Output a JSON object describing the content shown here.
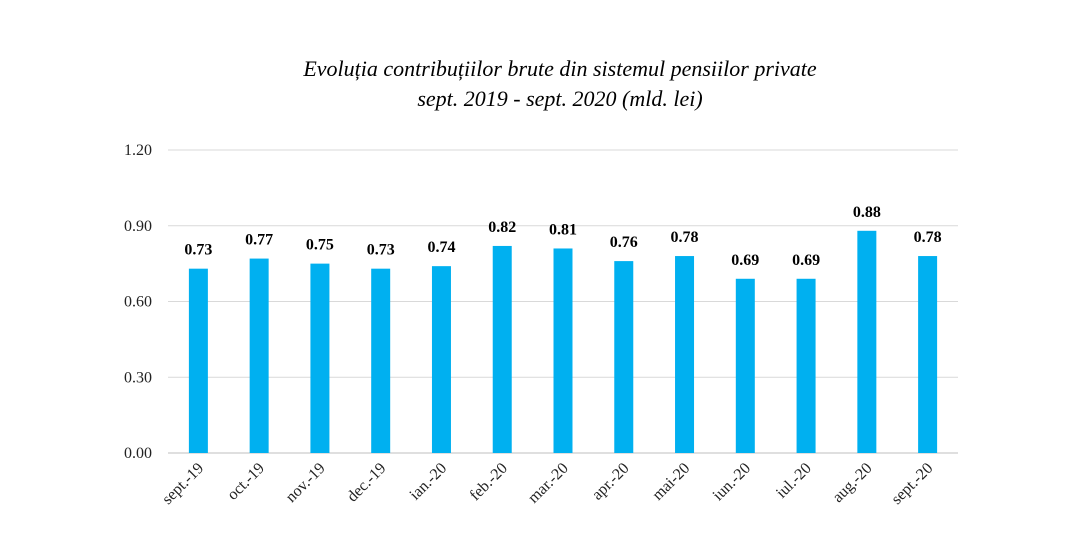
{
  "chart_data": {
    "type": "bar",
    "title": "Evoluția contribuțiilor brute din sistemul pensiilor private",
    "subtitle": "sept. 2019 - sept. 2020 (mld. lei)",
    "categories": [
      "sept.-19",
      "oct.-19",
      "nov.-19",
      "dec.-19",
      "ian.-20",
      "feb.-20",
      "mar.-20",
      "apr.-20",
      "mai-20",
      "iun.-20",
      "iul.-20",
      "aug.-20",
      "sept.-20"
    ],
    "values": [
      0.73,
      0.77,
      0.75,
      0.73,
      0.74,
      0.82,
      0.81,
      0.76,
      0.78,
      0.69,
      0.69,
      0.88,
      0.78
    ],
    "data_labels": [
      "0.73",
      "0.77",
      "0.75",
      "0.73",
      "0.74",
      "0.82",
      "0.81",
      "0.76",
      "0.78",
      "0.69",
      "0.69",
      "0.88",
      "0.78"
    ],
    "yticks": [
      "0.00",
      "0.30",
      "0.60",
      "0.90",
      "1.20"
    ],
    "ylim": [
      0,
      1.2
    ],
    "grid": true,
    "bar_color": "#00B0F0",
    "grid_color": "#D9D9D9"
  }
}
